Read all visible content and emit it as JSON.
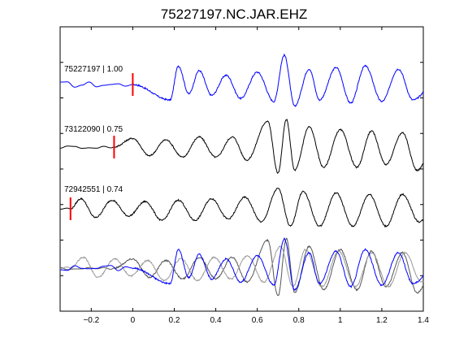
{
  "chart_data": {
    "type": "line",
    "title": "75227197.NC.JAR.EHZ",
    "xlabel": "",
    "ylabel": "",
    "xlim": [
      -0.35,
      1.4
    ],
    "x_ticks": [
      -0.2,
      0,
      0.2,
      0.4,
      0.6,
      0.8,
      1,
      1.2,
      1.4
    ],
    "x_tick_labels": [
      "−0.2",
      "0",
      "0.2",
      "0.4",
      "0.6",
      "0.8",
      "1",
      "1.2",
      "1.4"
    ],
    "y_ticks_count": 9,
    "grid": false,
    "legend": "none",
    "traces": [
      {
        "label": "75227197 | 1.00",
        "color": "#0000ff",
        "pick_time": 0.0,
        "waveform": {
          "onset": 0.0,
          "pre_noise": 0.1,
          "amp": 0.8,
          "wiggles": [
            {
              "t": 0.18,
              "a": -0.5
            },
            {
              "t": 0.22,
              "a": 0.6
            },
            {
              "t": 0.27,
              "a": -0.3
            },
            {
              "t": 0.32,
              "a": 0.45
            },
            {
              "t": 0.38,
              "a": -0.35
            },
            {
              "t": 0.45,
              "a": 0.3
            },
            {
              "t": 0.52,
              "a": -0.45
            },
            {
              "t": 0.6,
              "a": 0.4
            },
            {
              "t": 0.68,
              "a": -0.55
            },
            {
              "t": 0.73,
              "a": 0.95
            },
            {
              "t": 0.78,
              "a": -0.7
            },
            {
              "t": 0.85,
              "a": 0.5
            },
            {
              "t": 0.9,
              "a": -0.5
            },
            {
              "t": 0.98,
              "a": 0.55
            },
            {
              "t": 1.05,
              "a": -0.6
            },
            {
              "t": 1.12,
              "a": 0.6
            },
            {
              "t": 1.2,
              "a": -0.55
            },
            {
              "t": 1.28,
              "a": 0.5
            },
            {
              "t": 1.35,
              "a": -0.5
            }
          ]
        }
      },
      {
        "label": "73122090 | 0.75",
        "color": "#000000",
        "pick_time": -0.09,
        "waveform": {
          "onset": -0.09,
          "pre_noise": 0.05,
          "amp": 0.75,
          "wiggles": [
            {
              "t": 0.0,
              "a": 0.3
            },
            {
              "t": 0.08,
              "a": -0.3
            },
            {
              "t": 0.16,
              "a": 0.25
            },
            {
              "t": 0.24,
              "a": -0.35
            },
            {
              "t": 0.32,
              "a": 0.35
            },
            {
              "t": 0.4,
              "a": -0.35
            },
            {
              "t": 0.48,
              "a": 0.35
            },
            {
              "t": 0.55,
              "a": -0.45
            },
            {
              "t": 0.65,
              "a": 0.9
            },
            {
              "t": 0.7,
              "a": -0.9
            },
            {
              "t": 0.74,
              "a": 0.95
            },
            {
              "t": 0.78,
              "a": -0.8
            },
            {
              "t": 0.85,
              "a": 0.7
            },
            {
              "t": 0.92,
              "a": -0.7
            },
            {
              "t": 1.0,
              "a": 0.6
            },
            {
              "t": 1.08,
              "a": -0.7
            },
            {
              "t": 1.15,
              "a": 0.55
            },
            {
              "t": 1.22,
              "a": -0.6
            },
            {
              "t": 1.3,
              "a": 0.5
            },
            {
              "t": 1.37,
              "a": -0.8
            }
          ]
        }
      },
      {
        "label": "72942551 | 0.74",
        "color": "#000000",
        "pick_time": -0.3,
        "waveform": {
          "onset": -0.3,
          "pre_noise": 0.05,
          "amp": 0.75,
          "wiggles": [
            {
              "t": -0.25,
              "a": 0.35
            },
            {
              "t": -0.18,
              "a": -0.3
            },
            {
              "t": -0.1,
              "a": 0.3
            },
            {
              "t": -0.02,
              "a": -0.25
            },
            {
              "t": 0.06,
              "a": 0.25
            },
            {
              "t": 0.14,
              "a": -0.4
            },
            {
              "t": 0.22,
              "a": 0.3
            },
            {
              "t": 0.3,
              "a": -0.4
            },
            {
              "t": 0.38,
              "a": 0.35
            },
            {
              "t": 0.46,
              "a": -0.35
            },
            {
              "t": 0.54,
              "a": 0.4
            },
            {
              "t": 0.62,
              "a": -0.45
            },
            {
              "t": 0.7,
              "a": 0.7
            },
            {
              "t": 0.76,
              "a": -0.6
            },
            {
              "t": 0.82,
              "a": 0.6
            },
            {
              "t": 0.9,
              "a": -0.6
            },
            {
              "t": 0.98,
              "a": 0.55
            },
            {
              "t": 1.06,
              "a": -0.6
            },
            {
              "t": 1.14,
              "a": 0.5
            },
            {
              "t": 1.22,
              "a": -0.6
            },
            {
              "t": 1.3,
              "a": 0.5
            },
            {
              "t": 1.38,
              "a": -0.45
            }
          ]
        }
      }
    ],
    "overlay": {
      "colors": [
        "#555555",
        "#999999",
        "#0000ff"
      ],
      "amp": 0.8
    }
  }
}
